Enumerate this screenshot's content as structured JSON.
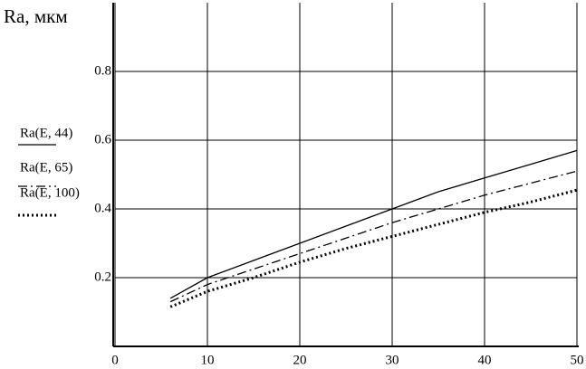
{
  "chart_data": {
    "type": "line",
    "y_label": "Ra, мкм",
    "x": [
      6,
      10,
      15,
      20,
      25,
      30,
      35,
      40,
      45,
      50
    ],
    "series": [
      {
        "name": "Ra(E, 44)",
        "color": "#000000",
        "style": "solid",
        "values": [
          0.14,
          0.2,
          0.25,
          0.3,
          0.35,
          0.4,
          0.45,
          0.49,
          0.53,
          0.57
        ]
      },
      {
        "name": "Ra(E, 65)",
        "color": "#000000",
        "style": "dashdot",
        "values": [
          0.13,
          0.18,
          0.225,
          0.27,
          0.315,
          0.36,
          0.4,
          0.44,
          0.475,
          0.51
        ]
      },
      {
        "name": "Ra(E, 100)",
        "color": "#000000",
        "style": "dotted",
        "values": [
          0.115,
          0.16,
          0.2,
          0.245,
          0.285,
          0.32,
          0.355,
          0.39,
          0.42,
          0.455
        ]
      }
    ],
    "xlim": [
      0,
      50
    ],
    "xticks": [
      0,
      10,
      20,
      30,
      40,
      50
    ],
    "ylim": [
      0,
      1
    ],
    "yticks": [
      0.2,
      0.4,
      0.6,
      0.8
    ],
    "grid": true
  }
}
